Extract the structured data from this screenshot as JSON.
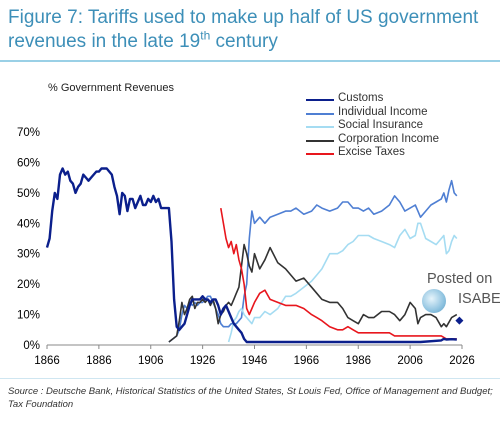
{
  "figure": {
    "title_line1": "Figure 7: Tariffs used to make up half of US government",
    "title_line2_pre": "revenues in the late 19",
    "title_line2_sup": "th",
    "title_line2_post": " century"
  },
  "source_text": "Source : Deutsche Bank, Historical Statistics of the United States, St Louis Fed, Office of Management and Budget; Tax Foundation",
  "watermark": {
    "line1": "Posted on",
    "line2": "ISABE"
  },
  "chart_data": {
    "type": "line",
    "ylabel": "% Government Revenues",
    "xlim": [
      1866,
      2026
    ],
    "ylim": [
      0,
      70
    ],
    "x_ticks": [
      1866,
      1886,
      1906,
      1926,
      1946,
      1966,
      1986,
      2006,
      2026
    ],
    "y_ticks": [
      0,
      10,
      20,
      30,
      40,
      50,
      60,
      70
    ],
    "y_tick_labels": [
      "0%",
      "10%",
      "20%",
      "30%",
      "40%",
      "50%",
      "60%",
      "70%"
    ],
    "legend_position": "top-right",
    "grid": false,
    "series": [
      {
        "name": "Customs",
        "color": "#0b1f8c",
        "x": [
          1866,
          1867,
          1868,
          1869,
          1870,
          1871,
          1872,
          1873,
          1874,
          1875,
          1876,
          1877,
          1878,
          1879,
          1880,
          1881,
          1882,
          1883,
          1884,
          1885,
          1886,
          1887,
          1888,
          1889,
          1890,
          1891,
          1892,
          1893,
          1894,
          1895,
          1896,
          1897,
          1898,
          1899,
          1900,
          1901,
          1902,
          1903,
          1904,
          1905,
          1906,
          1907,
          1908,
          1909,
          1910,
          1911,
          1912,
          1913,
          1914,
          1915,
          1916,
          1917,
          1918,
          1919,
          1920,
          1921,
          1922,
          1923,
          1924,
          1925,
          1926,
          1927,
          1928,
          1929,
          1930,
          1931,
          1932,
          1933,
          1934,
          1935,
          1936,
          1937,
          1938,
          1939,
          1940,
          1941,
          1942,
          1943,
          1944,
          1945,
          1950,
          1960,
          1970,
          1980,
          1990,
          2000,
          2010,
          2018,
          2019,
          2020,
          2022,
          2024
        ],
        "values": [
          32,
          35,
          44,
          50,
          48,
          56,
          58,
          56,
          57,
          54,
          53,
          50,
          52,
          53,
          56,
          55,
          54,
          55,
          56,
          57,
          57,
          58,
          58,
          58,
          57,
          56,
          52,
          49,
          43,
          50,
          49,
          44,
          48,
          48,
          45,
          47,
          49,
          46,
          46,
          48,
          47,
          49,
          47,
          48,
          45,
          45,
          45,
          45,
          34,
          15,
          6,
          5,
          6,
          7,
          10,
          13,
          15,
          15,
          15,
          15,
          16,
          15,
          15,
          14,
          15,
          15,
          13,
          10,
          12,
          13,
          11,
          9,
          7,
          6,
          5,
          4,
          2,
          1,
          1,
          1,
          1,
          1,
          1,
          1,
          1,
          1,
          1,
          1.5,
          2,
          1.8,
          1.9,
          1.8
        ]
      },
      {
        "name": "Individual Income",
        "color": "#4f7fd3",
        "x": [
          1913,
          1916,
          1917,
          1918,
          1919,
          1920,
          1921,
          1922,
          1923,
          1924,
          1925,
          1926,
          1927,
          1928,
          1929,
          1930,
          1931,
          1932,
          1933,
          1934,
          1935,
          1936,
          1937,
          1938,
          1939,
          1940,
          1941,
          1942,
          1943,
          1944,
          1945,
          1946,
          1948,
          1950,
          1952,
          1955,
          1958,
          1960,
          1962,
          1965,
          1968,
          1970,
          1972,
          1975,
          1978,
          1980,
          1982,
          1984,
          1986,
          1988,
          1990,
          1992,
          1995,
          1998,
          2000,
          2002,
          2004,
          2006,
          2008,
          2009,
          2010,
          2012,
          2014,
          2016,
          2018,
          2019,
          2020,
          2021,
          2022,
          2023,
          2024
        ],
        "values": [
          1,
          3,
          5,
          10,
          13,
          12,
          14,
          13,
          14,
          13,
          14,
          14,
          15,
          16,
          16,
          14,
          12,
          10,
          7,
          6,
          6,
          6,
          7,
          7,
          7,
          8,
          9,
          16,
          20,
          35,
          44,
          40,
          42,
          40,
          42,
          43,
          44,
          44,
          45,
          43,
          44,
          46,
          45,
          44,
          45,
          47,
          47,
          45,
          45,
          44,
          45,
          43,
          44,
          46,
          49,
          47,
          44,
          45,
          46,
          44,
          42,
          44,
          46,
          47,
          48,
          50,
          47,
          51,
          54,
          50,
          49
        ]
      },
      {
        "name": "Social Insurance",
        "color": "#a5dcf2",
        "x": [
          1936,
          1937,
          1938,
          1939,
          1940,
          1941,
          1942,
          1943,
          1944,
          1945,
          1946,
          1948,
          1950,
          1952,
          1955,
          1958,
          1960,
          1962,
          1965,
          1968,
          1970,
          1972,
          1975,
          1978,
          1980,
          1982,
          1984,
          1986,
          1988,
          1990,
          1992,
          1995,
          1998,
          2000,
          2002,
          2004,
          2006,
          2008,
          2009,
          2010,
          2012,
          2014,
          2016,
          2018,
          2019,
          2020,
          2021,
          2022,
          2023,
          2024
        ],
        "values": [
          1,
          4,
          8,
          9,
          11,
          12,
          10,
          9,
          8,
          7,
          9,
          9,
          11,
          10,
          12,
          16,
          16,
          17,
          19,
          21,
          23,
          25,
          30,
          30,
          31,
          33,
          34,
          36,
          36,
          36,
          35,
          34,
          33,
          32,
          36,
          38,
          35,
          36,
          40,
          40,
          35,
          34,
          33,
          35,
          36,
          30,
          31,
          34,
          36,
          35
        ]
      },
      {
        "name": "Corporation Income",
        "color": "#333333",
        "x": [
          1913,
          1916,
          1917,
          1918,
          1919,
          1920,
          1921,
          1922,
          1923,
          1924,
          1925,
          1926,
          1927,
          1928,
          1929,
          1930,
          1931,
          1932,
          1933,
          1934,
          1935,
          1936,
          1937,
          1938,
          1939,
          1940,
          1941,
          1942,
          1943,
          1944,
          1945,
          1946,
          1948,
          1950,
          1952,
          1955,
          1958,
          1960,
          1962,
          1965,
          1968,
          1970,
          1972,
          1975,
          1978,
          1980,
          1982,
          1984,
          1986,
          1988,
          1990,
          1992,
          1995,
          1998,
          2000,
          2002,
          2004,
          2006,
          2008,
          2009,
          2010,
          2012,
          2014,
          2016,
          2018,
          2019,
          2020,
          2022,
          2024
        ],
        "values": [
          1,
          3,
          8,
          14,
          10,
          12,
          15,
          16,
          12,
          14,
          14,
          15,
          14,
          15,
          13,
          15,
          12,
          7,
          10,
          11,
          13,
          14,
          13,
          15,
          17,
          19,
          26,
          33,
          30,
          26,
          24,
          30,
          25,
          28,
          32,
          27,
          25,
          23,
          21,
          22,
          19,
          17,
          15,
          14,
          14,
          12,
          9,
          8,
          7,
          10,
          9,
          9,
          11,
          11,
          10,
          8,
          10,
          14,
          12,
          7,
          9,
          10,
          10,
          9,
          6,
          7,
          6,
          9,
          10
        ]
      },
      {
        "name": "Excise Taxes",
        "color": "#e8161d",
        "x": [
          1933,
          1934,
          1935,
          1936,
          1937,
          1938,
          1939,
          1940,
          1941,
          1942,
          1943,
          1944,
          1945,
          1946,
          1948,
          1950,
          1952,
          1955,
          1958,
          1960,
          1962,
          1965,
          1968,
          1970,
          1972,
          1975,
          1978,
          1980,
          1982,
          1984,
          1986,
          1988,
          1990,
          1992,
          1995,
          1998,
          2000,
          2002,
          2004,
          2006,
          2008,
          2010,
          2012,
          2014,
          2016,
          2018,
          2020,
          2022,
          2024
        ],
        "values": [
          45,
          40,
          35,
          32,
          34,
          30,
          33,
          28,
          25,
          20,
          12,
          10,
          12,
          14,
          17,
          18,
          15,
          14,
          13,
          13,
          13,
          12,
          10,
          9,
          8,
          6,
          5,
          5,
          6,
          5,
          4,
          4,
          4,
          4,
          4,
          4,
          3,
          3,
          3,
          3,
          3,
          3,
          3,
          3,
          3,
          3,
          2,
          2,
          2
        ]
      }
    ],
    "last_point_marker": {
      "series": "Customs",
      "x": 2025,
      "y": 8
    }
  }
}
